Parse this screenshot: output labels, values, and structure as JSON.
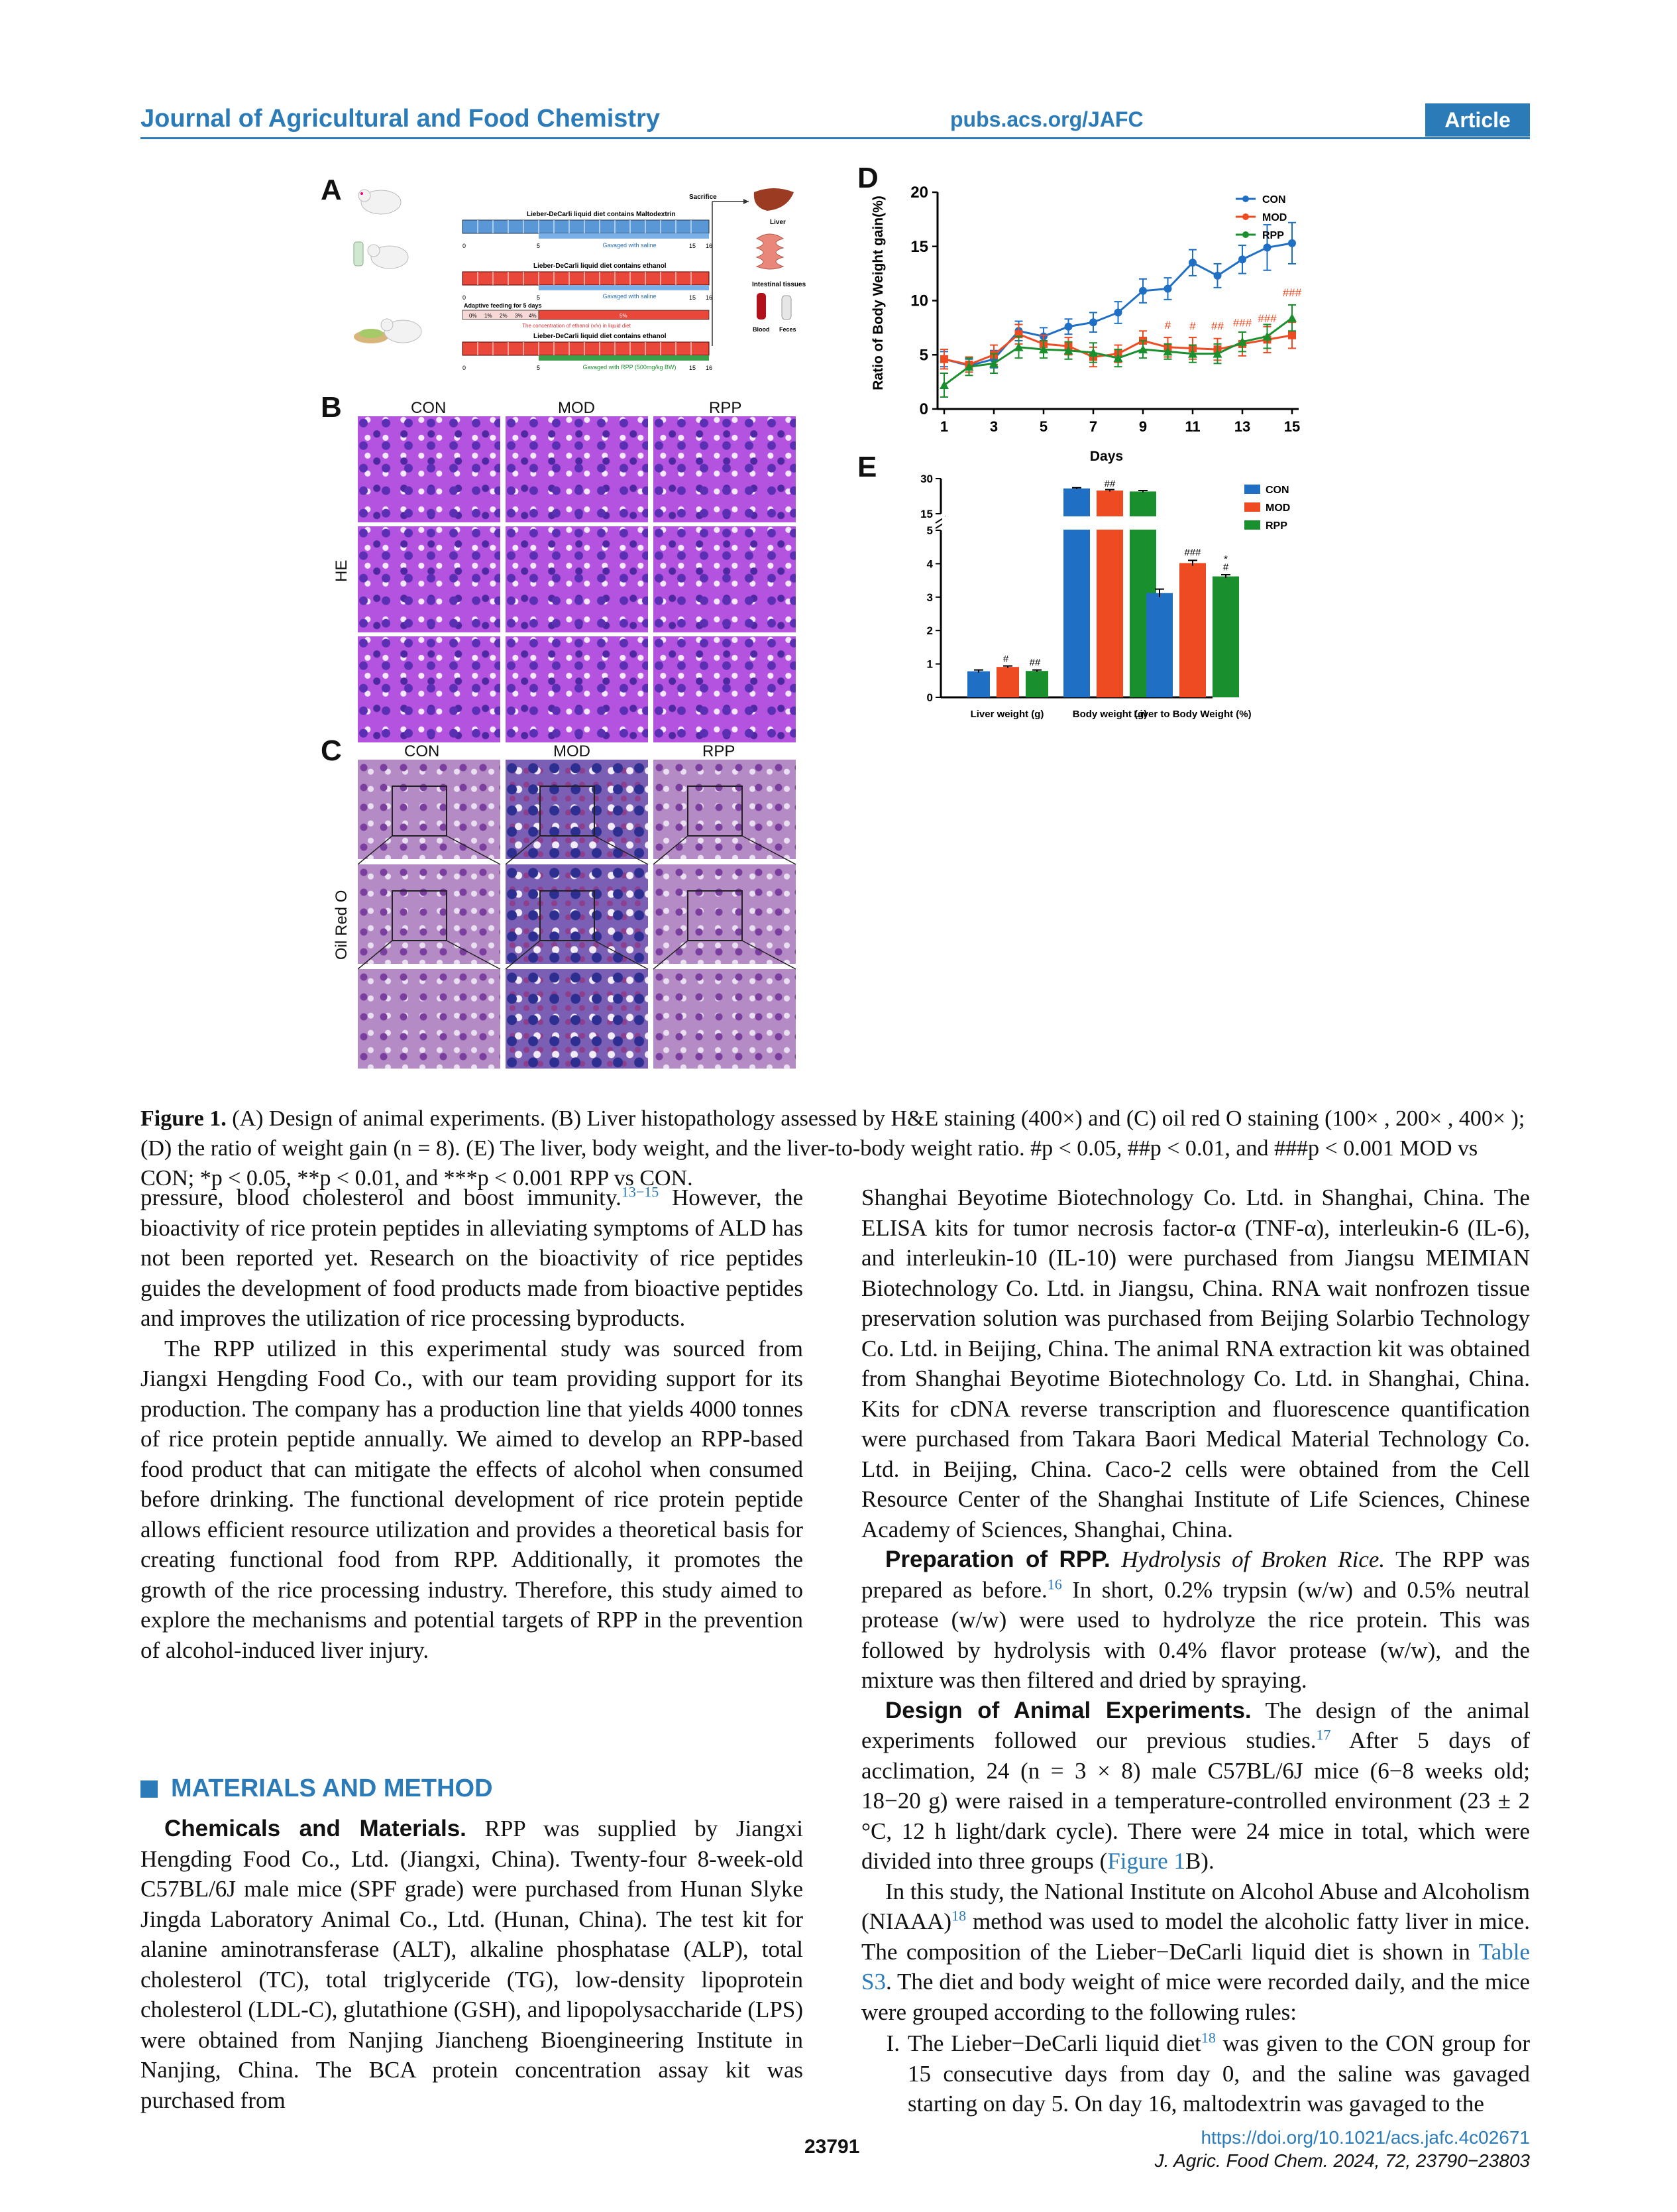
{
  "header": {
    "journal": "Journal of Agricultural and Food Chemistry",
    "url": "pubs.acs.org/JAFC",
    "badge": "Article"
  },
  "figure": {
    "panel_labels": [
      "A",
      "B",
      "C",
      "D",
      "E"
    ],
    "panel_a": {
      "sacrifice": "Sacrifice",
      "liver": "Liver",
      "intestinal": "Intestinal tissues",
      "blood": "Blood",
      "feces": "Feces",
      "row1_diet": "Lieber-DeCarli liquid diet contains Maltodextrin",
      "row1_gavage": "Gavaged with saline",
      "row2_diet": "Lieber-DeCarli liquid diet contains ethanol",
      "row2_gavage": "Gavaged with saline",
      "adaptive": "Adaptive feeding for 5 days",
      "ethanol_levels": [
        "0%",
        "1%",
        "2%",
        "3%",
        "4%"
      ],
      "ethanol_final": "5%",
      "ethanol_note": "The concentration of ethanol (v/v) in liquid diet",
      "row3_diet": "Lieber-DeCarli liquid diet contains ethanol",
      "row3_gavage": "Gavaged with RPP (500mg/kg BW)",
      "tick_0": "0",
      "tick_5": "5",
      "tick_15": "15",
      "tick_16": "16"
    },
    "panel_b": {
      "columns": [
        "CON",
        "MOD",
        "RPP"
      ],
      "side_label": "HE"
    },
    "panel_c": {
      "columns": [
        "CON",
        "MOD",
        "RPP"
      ],
      "side_label": "Oil Red O"
    },
    "panel_d_ylabel": "Ratio of Body Weight gain(%)",
    "panel_d_xlabel": "Days",
    "panel_e_sig": {
      "liver_mod": "#",
      "liver_rpp": "##",
      "body_mod": "##",
      "ratio_mod": "###",
      "ratio_rpp_1": "*",
      "ratio_rpp_2": "#"
    },
    "panel_d_sig": [
      "#",
      "#",
      "##",
      "###",
      "###",
      "###"
    ]
  },
  "chart_data": [
    {
      "type": "line",
      "ylabel": "Ratio of Body Weight gain(%)",
      "xlabel": "Days",
      "xlim": [
        1,
        15
      ],
      "ylim": [
        0,
        20
      ],
      "xticks": [
        1,
        3,
        5,
        7,
        9,
        11,
        13,
        15
      ],
      "yticks": [
        0,
        5,
        10,
        15,
        20
      ],
      "legend_position": "top-right",
      "x": [
        1,
        2,
        3,
        4,
        5,
        6,
        7,
        8,
        9,
        10,
        11,
        12,
        13,
        14,
        15
      ],
      "series": [
        {
          "name": "CON",
          "color": "#1f6fc4",
          "marker": "circle",
          "values": [
            4.6,
            4.0,
            4.6,
            7.2,
            6.7,
            7.6,
            8.0,
            8.9,
            10.9,
            11.1,
            13.5,
            12.3,
            13.8,
            14.9,
            15.3
          ],
          "errors": [
            0.7,
            0.6,
            0.8,
            0.9,
            0.8,
            0.7,
            0.9,
            1.0,
            1.1,
            1.0,
            1.2,
            1.1,
            1.3,
            2.1,
            1.9
          ]
        },
        {
          "name": "MOD",
          "color": "#ef4b22",
          "marker": "square",
          "values": [
            4.6,
            4.1,
            5.0,
            6.9,
            6.0,
            5.8,
            4.8,
            5.1,
            6.3,
            5.7,
            5.6,
            5.5,
            6.0,
            6.4,
            6.8
          ],
          "errors": [
            0.9,
            0.7,
            0.9,
            0.9,
            0.8,
            0.8,
            0.9,
            0.8,
            0.9,
            0.9,
            1.0,
            1.0,
            1.1,
            1.2,
            1.2
          ]
        },
        {
          "name": "RPP",
          "color": "#1a8f2e",
          "marker": "triangle",
          "values": [
            2.2,
            3.9,
            4.2,
            5.7,
            5.5,
            5.4,
            5.2,
            4.7,
            5.5,
            5.3,
            5.1,
            5.1,
            6.2,
            6.7,
            8.4
          ],
          "errors": [
            1.1,
            0.8,
            0.9,
            1.0,
            0.8,
            0.8,
            0.9,
            0.8,
            0.8,
            0.7,
            0.8,
            0.9,
            0.9,
            1.1,
            1.2
          ]
        }
      ]
    },
    {
      "type": "bar",
      "categories": [
        "Liver weight (g)",
        "Body weight (g)",
        "Liver to Body Weight (%)"
      ],
      "yticks_lower": [
        0,
        1,
        2,
        3,
        4,
        5
      ],
      "yticks_upper": [
        15,
        30
      ],
      "axis_break": true,
      "legend_position": "top-right",
      "series": [
        {
          "name": "CON",
          "color": "#1f6fc4",
          "values": [
            0.78,
            25.8,
            3.12
          ],
          "errors": [
            0.04,
            0.3,
            0.12
          ]
        },
        {
          "name": "MOD",
          "color": "#ef4b22",
          "values": [
            0.91,
            24.9,
            4.02
          ],
          "errors": [
            0.03,
            0.4,
            0.08
          ]
        },
        {
          "name": "RPP",
          "color": "#1a8f2e",
          "values": [
            0.79,
            24.5,
            3.62
          ],
          "errors": [
            0.03,
            0.4,
            0.05
          ]
        }
      ]
    }
  ],
  "caption": {
    "label": "Figure 1.",
    "text": "(A) Design of animal experiments. (B) Liver histopathology assessed by H&E staining (400×) and (C) oil red O staining (100× , 200× , 400× ); (D) the ratio of weight gain (n = 8). (E) The liver, body weight, and the liver-to-body weight ratio. #p < 0.05, ##p < 0.01, and ###p < 0.001 MOD vs CON; *p < 0.05, **p < 0.01, and ***p < 0.001 RPP vs CON."
  },
  "left_column": {
    "p1_a": "pressure, blood cholesterol and boost immunity.",
    "p1_ref": "13−15",
    "p1_b": " However, the bioactivity of rice protein peptides in alleviating symptoms of ALD has not been reported yet. Research on the bioactivity of rice peptides guides the development of food products made from bioactive peptides and improves the utilization of rice processing byproducts.",
    "p2": "The RPP utilized in this experimental study was sourced from Jiangxi Hengding Food Co., with our team providing support for its production. The company has a production line that yields 4000 tonnes of rice protein peptide annually. We aimed to develop an RPP-based food product that can mitigate the effects of alcohol when consumed before drinking. The functional development of rice protein peptide allows efficient resource utilization and provides a theoretical basis for creating functional food from RPP. Additionally, it promotes the growth of the rice processing industry. Therefore, this study aimed to explore the mechanisms and potential targets of RPP in the prevention of alcohol-induced liver injury.",
    "section": "MATERIALS AND METHOD",
    "p3_head": "Chemicals and Materials.",
    "p3": " RPP was supplied by Jiangxi Hengding Food Co., Ltd. (Jiangxi, China). Twenty-four 8-week-old C57BL/6J male mice (SPF grade) were purchased from Hunan Slyke Jingda Laboratory Animal Co., Ltd. (Hunan, China). The test kit for alanine aminotransferase (ALT), alkaline phosphatase (ALP), total cholesterol (TC), total triglyceride (TG), low-density lipoprotein cholesterol (LDL-C), glutathione (GSH), and lipopolysaccharide (LPS) were obtained from Nanjing Jiancheng Bioengineering Institute in Nanjing, China. The BCA protein concentration assay kit was purchased from"
  },
  "right_column": {
    "p1": "Shanghai Beyotime Biotechnology Co. Ltd. in Shanghai, China. The ELISA kits for tumor necrosis factor-α (TNF-α), interleukin-6 (IL-6), and interleukin-10 (IL-10) were purchased from Jiangsu MEIMIAN Biotechnology Co. Ltd. in Jiangsu, China. RNA wait nonfrozen tissue preservation solution was purchased from Beijing Solarbio Technology Co. Ltd. in Beijing, China. The animal RNA extraction kit was obtained from Shanghai Beyotime Biotechnology Co. Ltd. in Shanghai, China. Kits for cDNA reverse transcription and fluorescence quantification were purchased from Takara Baori Medical Material Technology Co. Ltd. in Beijing, China. Caco-2 cells were obtained from the Cell Resource Center of the Shanghai Institute of Life Sciences, Chinese Academy of Sciences, Shanghai, China.",
    "p2_head": "Preparation of RPP.",
    "p2_sub": " Hydrolysis of Broken Rice.",
    "p2_a": " The RPP was prepared as before.",
    "p2_ref": "16",
    "p2_b": " In short, 0.2% trypsin (w/w) and 0.5% neutral protease (w/w) were used to hydrolyze the rice protein. This was followed by hydrolysis with 0.4% flavor protease (w/w), and the mixture was then filtered and dried by spraying.",
    "p3_head": "Design of Animal Experiments.",
    "p3_a": " The design of the animal experiments followed our previous studies.",
    "p3_ref": "17",
    "p3_b": " After 5 days of acclimation, 24 (n = 3 × 8) male C57BL/6J mice (6−8 weeks old; 18−20 g) were raised in a temperature-controlled environment (23 ± 2 °C, 12 h light/dark cycle). There were 24 mice in total, which were divided into three groups (",
    "p3_link": "Figure 1",
    "p3_c": "B).",
    "p4_a": "In this study, the National Institute on Alcohol Abuse and Alcoholism (NIAAA)",
    "p4_ref": "18",
    "p4_b": " method was used to model the alcoholic fatty liver in mice. The composition of the Lieber−DeCarli liquid diet is shown in ",
    "p4_link": "Table S3",
    "p4_c": ". The diet and body weight of mice were recorded daily, and the mice were grouped according to the following rules:",
    "li_num": "I.",
    "li_a": "The Lieber−DeCarli liquid diet",
    "li_ref": "18",
    "li_b": " was given to the CON group for 15 consecutive days from day 0, and the saline was gavaged starting on day 5. On day 16, maltodextrin was gavaged to the"
  },
  "footer": {
    "page": "23791",
    "doi": "https://doi.org/10.1021/acs.jafc.4c02671",
    "citation": "J. Agric. Food Chem. 2024, 72, 23790−23803"
  }
}
